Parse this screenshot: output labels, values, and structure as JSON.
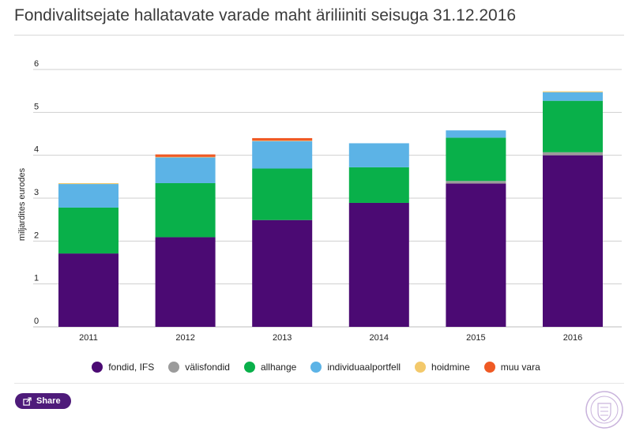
{
  "title": "Fondivalitsejate hallatavate varade maht äriliiniti seisuga 31.12.2016",
  "share_label": "Share",
  "colors": {
    "fondid, IFS": "#4b0a73",
    "välisfondid": "#9b9b9b",
    "allhange": "#09b04a",
    "individuaalportfell": "#5cb3e6",
    "hoidmine": "#f3c96b",
    "muu vara": "#ef5a24"
  },
  "chart_data": {
    "type": "bar",
    "stacked": true,
    "title": "Fondivalitsejate hallatavate varade maht äriliiniti seisuga 31.12.2016",
    "xlabel": "",
    "ylabel": "miljardites eurodes",
    "ylim": [
      0,
      6
    ],
    "yticks": [
      "0",
      "1",
      "2",
      "3",
      "4",
      "5",
      "6"
    ],
    "grid": true,
    "legend_position": "bottom",
    "categories": [
      "2011",
      "2012",
      "2013",
      "2014",
      "2015",
      "2016"
    ],
    "series": [
      {
        "name": "fondid, IFS",
        "values": [
          1.71,
          2.09,
          2.49,
          2.89,
          3.34,
          4.0
        ]
      },
      {
        "name": "välisfondid",
        "values": [
          0.0,
          0.0,
          0.0,
          0.0,
          0.06,
          0.07
        ]
      },
      {
        "name": "allhange",
        "values": [
          1.07,
          1.26,
          1.2,
          0.83,
          1.01,
          1.2
        ]
      },
      {
        "name": "individuaalportfell",
        "values": [
          0.55,
          0.6,
          0.64,
          0.56,
          0.17,
          0.2
        ]
      },
      {
        "name": "hoidmine",
        "values": [
          0.02,
          0.01,
          0.01,
          0.0,
          0.0,
          0.02
        ]
      },
      {
        "name": "muu vara",
        "values": [
          0.0,
          0.06,
          0.06,
          0.0,
          0.0,
          0.0
        ]
      }
    ]
  }
}
